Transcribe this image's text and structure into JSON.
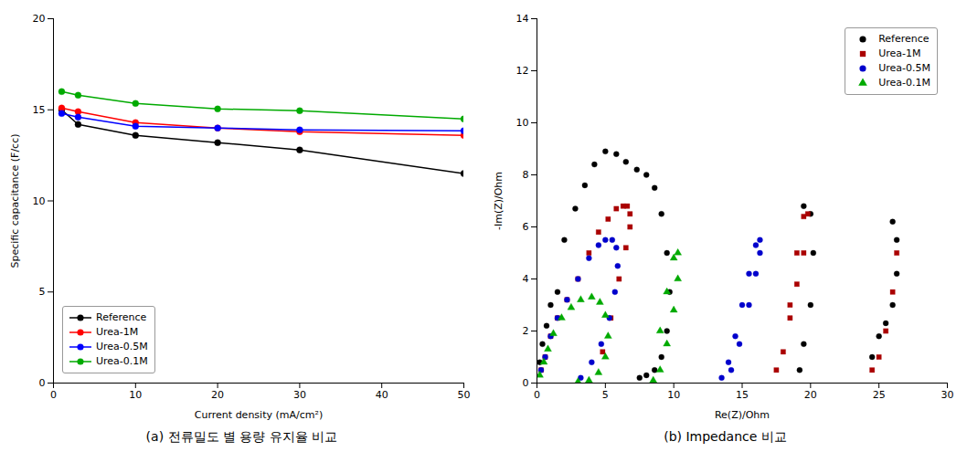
{
  "chart_data": [
    {
      "type": "line",
      "xlabel": "Current density (mA/cm²)",
      "ylabel": "Specific capacitance (F/cc)",
      "caption": "(a) 전류밀도 별 용량 유지율 비교",
      "xlim": [
        0,
        50
      ],
      "ylim": [
        0,
        20
      ],
      "xticks": [
        0,
        10,
        20,
        30,
        40,
        50
      ],
      "yticks": [
        0,
        5,
        10,
        15,
        20
      ],
      "grid": false,
      "legend": "lower left",
      "marker": "o",
      "x": [
        1,
        3,
        10,
        20,
        30,
        50
      ],
      "series": [
        {
          "name": "Reference",
          "color": "#000000",
          "values": [
            15.0,
            14.2,
            13.6,
            13.2,
            12.8,
            11.5
          ]
        },
        {
          "name": "Urea-1M",
          "color": "#ff0000",
          "values": [
            15.1,
            14.9,
            14.3,
            14.0,
            13.8,
            13.6
          ]
        },
        {
          "name": "Urea-0.5M",
          "color": "#0000ff",
          "values": [
            14.8,
            14.6,
            14.1,
            14.0,
            13.9,
            13.85
          ]
        },
        {
          "name": "Urea-0.1M",
          "color": "#00aa00",
          "values": [
            16.0,
            15.8,
            15.35,
            15.05,
            14.95,
            14.5
          ]
        }
      ]
    },
    {
      "type": "scatter",
      "xlabel": "Re(Z)/Ohm",
      "ylabel": "-Im(Z)/Ohm",
      "caption": "(b) Impedance 비교",
      "xlim": [
        0,
        30
      ],
      "ylim": [
        0,
        14
      ],
      "xticks": [
        0,
        5,
        10,
        15,
        20,
        25,
        30
      ],
      "yticks": [
        0,
        2,
        4,
        6,
        8,
        10,
        12,
        14
      ],
      "grid": false,
      "legend": "upper right",
      "series": [
        {
          "name": "Reference",
          "color": "#000000",
          "marker": "o",
          "x": [
            0.2,
            0.4,
            0.7,
            1.0,
            1.5,
            2.0,
            2.8,
            3.5,
            4.2,
            5.0,
            5.8,
            6.5,
            7.3,
            8.0,
            8.6,
            9.1,
            9.5,
            9.7,
            9.5,
            9.1,
            8.6,
            8.0,
            7.5,
            19.2,
            19.5,
            20.0,
            20.2,
            20.0,
            19.5,
            24.5,
            25.0,
            25.5,
            26.0,
            26.3,
            26.3,
            26.0
          ],
          "values": [
            0.8,
            1.5,
            2.2,
            3.0,
            3.5,
            5.5,
            6.7,
            7.6,
            8.4,
            8.9,
            8.8,
            8.5,
            8.2,
            8.0,
            7.5,
            6.5,
            5.0,
            3.5,
            2.0,
            1.0,
            0.5,
            0.3,
            0.2,
            0.5,
            1.5,
            3.0,
            5.0,
            6.5,
            6.8,
            1.0,
            1.8,
            2.3,
            3.0,
            4.2,
            5.5,
            6.2
          ]
        },
        {
          "name": "Urea-1M",
          "color": "#aa0000",
          "marker": "s",
          "x": [
            0.3,
            0.6,
            1.0,
            1.5,
            2.2,
            3.0,
            3.8,
            4.5,
            5.2,
            5.8,
            6.3,
            6.6,
            6.8,
            6.8,
            6.5,
            6.0,
            5.4,
            4.8,
            17.5,
            18.0,
            18.5,
            19.0,
            19.5,
            19.8,
            19.5,
            19.0,
            18.5,
            24.5,
            25.0,
            25.5,
            26.0,
            26.3
          ],
          "values": [
            0.5,
            1.0,
            1.8,
            2.5,
            3.2,
            4.0,
            5.0,
            5.8,
            6.3,
            6.7,
            6.8,
            6.8,
            6.5,
            6.0,
            5.2,
            4.0,
            2.5,
            1.2,
            0.5,
            1.2,
            2.5,
            3.8,
            5.0,
            6.5,
            6.4,
            5.0,
            3.0,
            0.5,
            1.0,
            2.0,
            3.5,
            5.0
          ]
        },
        {
          "name": "Urea-0.5M",
          "color": "#0000cc",
          "marker": "o",
          "x": [
            0.3,
            0.6,
            1.0,
            1.5,
            2.2,
            3.0,
            3.8,
            4.5,
            5.0,
            5.5,
            5.8,
            5.9,
            5.7,
            5.3,
            4.7,
            4.0,
            3.2,
            13.5,
            14.0,
            14.5,
            15.0,
            15.5,
            16.0,
            16.3,
            16.3,
            16.0,
            15.5,
            14.8,
            14.2
          ],
          "values": [
            0.5,
            1.0,
            1.8,
            2.5,
            3.2,
            4.0,
            4.8,
            5.3,
            5.5,
            5.5,
            5.2,
            4.5,
            3.5,
            2.5,
            1.5,
            0.8,
            0.2,
            0.2,
            0.8,
            1.8,
            3.0,
            4.2,
            5.3,
            5.5,
            5.0,
            4.2,
            3.0,
            1.5,
            0.5
          ]
        },
        {
          "name": "Urea-0.1M",
          "color": "#00aa00",
          "marker": "^",
          "x": [
            0.2,
            0.5,
            0.8,
            1.2,
            1.8,
            2.5,
            3.2,
            4.0,
            4.6,
            5.0,
            5.2,
            5.0,
            4.5,
            3.8,
            3.0,
            8.5,
            9.0,
            9.5,
            10.0,
            10.3,
            10.3,
            10.0,
            9.5,
            9.0
          ],
          "values": [
            0.3,
            0.8,
            1.3,
            1.9,
            2.5,
            2.9,
            3.2,
            3.3,
            3.1,
            2.6,
            1.8,
            1.0,
            0.4,
            0.1,
            0.05,
            0.1,
            0.5,
            1.5,
            2.8,
            4.0,
            5.0,
            4.8,
            3.5,
            2.0
          ]
        }
      ]
    }
  ]
}
